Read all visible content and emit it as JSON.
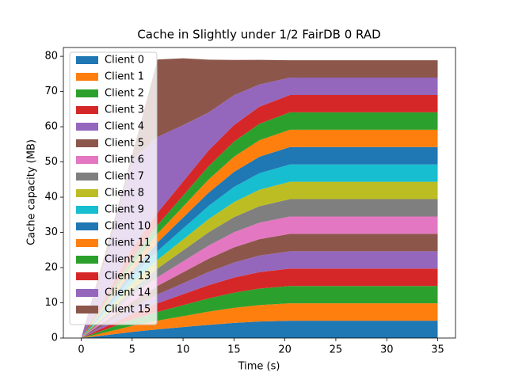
{
  "chart_data": {
    "type": "stacked_area",
    "title": "Cache in Slightly under 1/2 FairDB 0 RAD",
    "x_label": "Time (s)",
    "y_label": "Cache capacity (MB)",
    "x": [
      0,
      2.5,
      5,
      7.5,
      10,
      12.5,
      15,
      17.5,
      20.5,
      35
    ],
    "xlim": [
      -1.75,
      36.75
    ],
    "ylim": [
      0,
      82.5
    ],
    "xticks": [
      0,
      5,
      10,
      15,
      20,
      25,
      30,
      35
    ],
    "yticks": [
      0,
      10,
      20,
      30,
      40,
      50,
      60,
      70,
      80
    ],
    "legend": "upper left",
    "series": [
      {
        "name": "Client 0",
        "color": "#1f77b4",
        "values": [
          0,
          0.84,
          1.73,
          2.47,
          3.11,
          3.75,
          4.29,
          4.68,
          4.93,
          4.93
        ]
      },
      {
        "name": "Client 1",
        "color": "#ff7f0e",
        "values": [
          0,
          0.84,
          1.73,
          2.47,
          3.11,
          3.75,
          4.29,
          4.68,
          4.93,
          4.93
        ]
      },
      {
        "name": "Client 2",
        "color": "#2ca02c",
        "values": [
          0,
          0.84,
          1.73,
          2.47,
          3.11,
          3.75,
          4.29,
          4.68,
          4.93,
          4.93
        ]
      },
      {
        "name": "Client 3",
        "color": "#d62728",
        "values": [
          0,
          0.84,
          1.73,
          2.47,
          3.11,
          3.75,
          4.29,
          4.68,
          4.93,
          4.93
        ]
      },
      {
        "name": "Client 4",
        "color": "#9467bd",
        "values": [
          0,
          0.84,
          1.73,
          2.47,
          3.11,
          3.75,
          4.29,
          4.68,
          4.93,
          4.93
        ]
      },
      {
        "name": "Client 5",
        "color": "#8c564b",
        "values": [
          0,
          0.84,
          1.73,
          2.47,
          3.11,
          3.75,
          4.29,
          4.68,
          4.93,
          4.93
        ]
      },
      {
        "name": "Client 6",
        "color": "#e377c2",
        "values": [
          0,
          0.84,
          1.73,
          2.47,
          3.11,
          3.75,
          4.29,
          4.68,
          4.93,
          4.93
        ]
      },
      {
        "name": "Client 7",
        "color": "#7f7f7f",
        "values": [
          0,
          0.84,
          1.73,
          2.47,
          3.11,
          3.75,
          4.29,
          4.68,
          4.93,
          4.93
        ]
      },
      {
        "name": "Client 8",
        "color": "#bcbd22",
        "values": [
          0,
          0.84,
          1.73,
          2.47,
          3.11,
          3.75,
          4.29,
          4.68,
          4.93,
          4.93
        ]
      },
      {
        "name": "Client 9",
        "color": "#17becf",
        "values": [
          0,
          0.84,
          1.73,
          2.47,
          3.11,
          3.75,
          4.29,
          4.68,
          4.93,
          4.93
        ]
      },
      {
        "name": "Client 10",
        "color": "#1f77b4",
        "values": [
          0,
          0.84,
          1.73,
          2.47,
          3.11,
          3.75,
          4.29,
          4.68,
          4.93,
          4.93
        ]
      },
      {
        "name": "Client 11",
        "color": "#ff7f0e",
        "values": [
          0,
          0.84,
          1.73,
          2.47,
          3.11,
          3.75,
          4.29,
          4.68,
          4.93,
          4.93
        ]
      },
      {
        "name": "Client 12",
        "color": "#2ca02c",
        "values": [
          0,
          0.84,
          1.73,
          2.47,
          3.11,
          3.75,
          4.29,
          4.68,
          4.93,
          4.93
        ]
      },
      {
        "name": "Client 13",
        "color": "#d62728",
        "values": [
          0,
          1.5,
          3,
          3.5,
          4,
          4.5,
          4.7,
          4.85,
          4.93,
          4.93
        ]
      },
      {
        "name": "Client 14",
        "color": "#9467bd",
        "values": [
          0,
          11,
          25,
          21.5,
          16,
          10.8,
          8.5,
          6.3,
          4.93,
          4.93
        ]
      },
      {
        "name": "Client 15",
        "color": "#8c564b",
        "values": [
          0,
          2.3,
          1.6,
          22,
          19,
          15,
          10,
          7,
          4.93,
          4.93
        ]
      }
    ]
  }
}
